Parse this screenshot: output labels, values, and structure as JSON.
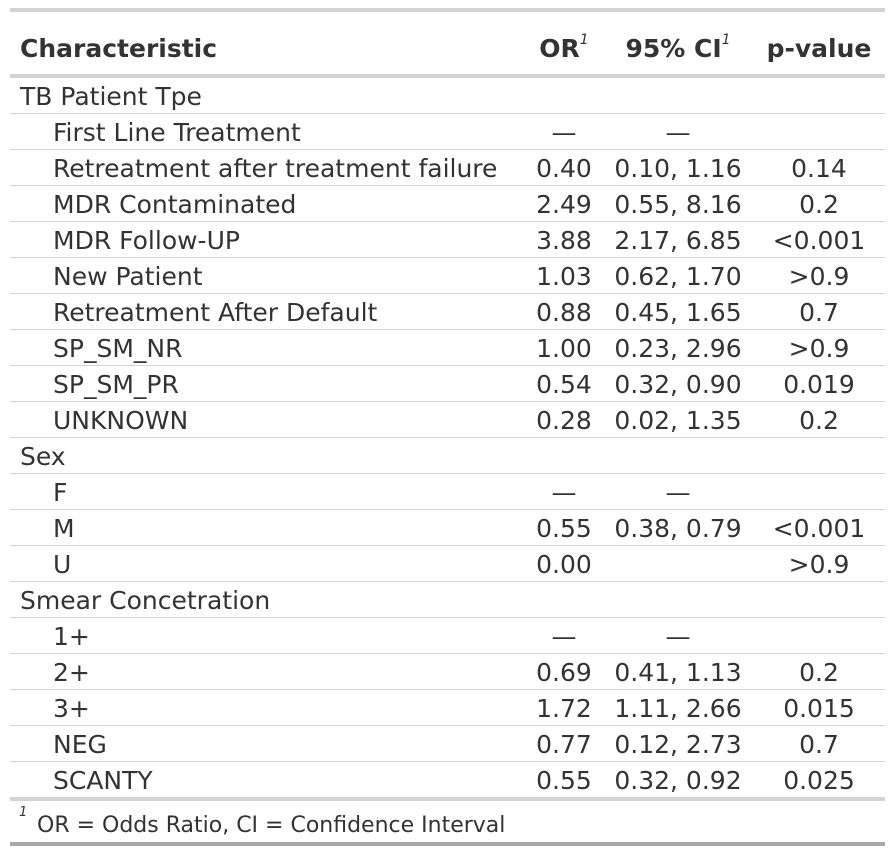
{
  "header": {
    "characteristic": "Characteristic",
    "or": "OR",
    "ci": "95% CI",
    "pvalue": "p-value",
    "fn_marker": "1"
  },
  "groups": [
    {
      "label": "TB Patient Tpe",
      "rows": [
        {
          "label": "First Line Treatment",
          "or": "—",
          "ci": "—",
          "p": ""
        },
        {
          "label": "Retreatment after treatment failure",
          "or": "0.40",
          "ci": "0.10, 1.16",
          "p": "0.14"
        },
        {
          "label": "MDR Contaminated",
          "or": "2.49",
          "ci": "0.55, 8.16",
          "p": "0.2"
        },
        {
          "label": "MDR Follow-UP",
          "or": "3.88",
          "ci": "2.17, 6.85",
          "p": "<0.001"
        },
        {
          "label": "New Patient",
          "or": "1.03",
          "ci": "0.62, 1.70",
          "p": ">0.9"
        },
        {
          "label": "Retreatment After Default",
          "or": "0.88",
          "ci": "0.45, 1.65",
          "p": "0.7"
        },
        {
          "label": "SP_SM_NR",
          "or": "1.00",
          "ci": "0.23, 2.96",
          "p": ">0.9"
        },
        {
          "label": "SP_SM_PR",
          "or": "0.54",
          "ci": "0.32, 0.90",
          "p": "0.019"
        },
        {
          "label": "UNKNOWN",
          "or": "0.28",
          "ci": "0.02, 1.35",
          "p": "0.2"
        }
      ]
    },
    {
      "label": "Sex",
      "rows": [
        {
          "label": "F",
          "or": "—",
          "ci": "—",
          "p": ""
        },
        {
          "label": "M",
          "or": "0.55",
          "ci": "0.38, 0.79",
          "p": "<0.001"
        },
        {
          "label": "U",
          "or": "0.00",
          "ci": "",
          "p": ">0.9"
        }
      ]
    },
    {
      "label": "Smear Concetration",
      "rows": [
        {
          "label": "1+",
          "or": "—",
          "ci": "—",
          "p": ""
        },
        {
          "label": "2+",
          "or": "0.69",
          "ci": "0.41, 1.13",
          "p": "0.2"
        },
        {
          "label": "3+",
          "or": "1.72",
          "ci": "1.11, 2.66",
          "p": "0.015"
        },
        {
          "label": "NEG",
          "or": "0.77",
          "ci": "0.12, 2.73",
          "p": "0.7"
        },
        {
          "label": "SCANTY",
          "or": "0.55",
          "ci": "0.32, 0.92",
          "p": "0.025"
        }
      ]
    }
  ],
  "footnote": {
    "marker": "1",
    "text": "OR = Odds Ratio, CI = Confidence Interval"
  }
}
